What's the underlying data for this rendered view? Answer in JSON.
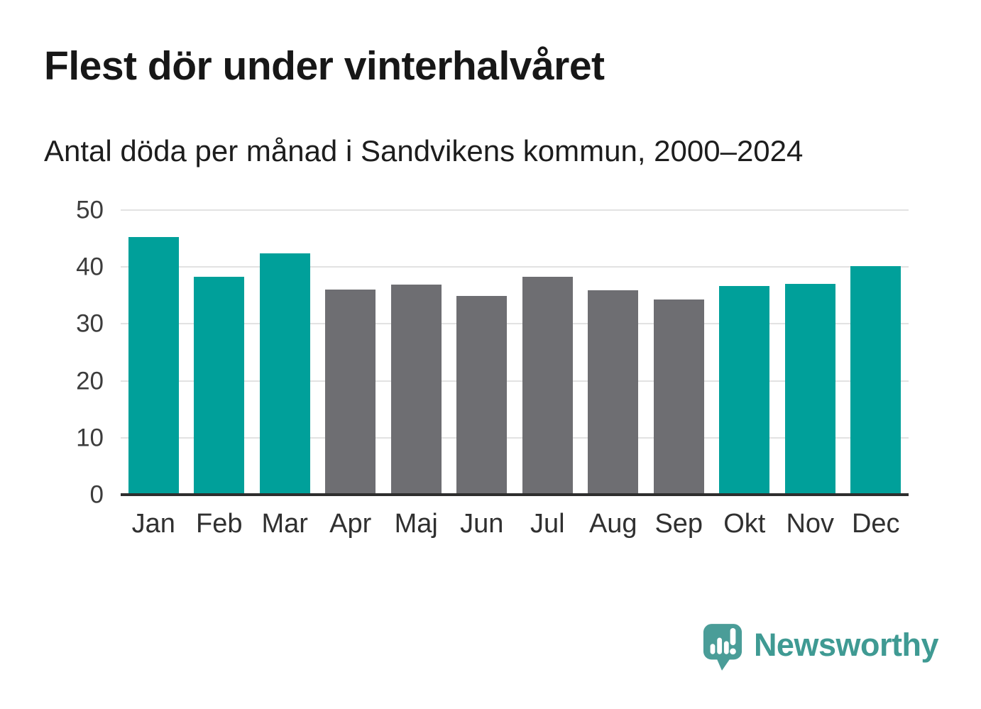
{
  "header": {
    "title": "Flest dör under vinterhalvåret",
    "subtitle": "Antal döda per månad i Sandvikens kommun, 2000–2024"
  },
  "branding": {
    "logo_text": "Newsworthy",
    "logo_icon": "newsworthy-speech-bubble-bar-chart-icon"
  },
  "colors": {
    "winter_bar": "#00a09a",
    "summer_bar": "#6e6e72",
    "gridline": "#e2e2e2",
    "axis_line": "#2e2e2e",
    "brand_text": "#3f9a93",
    "brand_bubble": "#4a9d98"
  },
  "chart_data": {
    "type": "bar",
    "title": "Flest dör under vinterhalvåret",
    "subtitle": "Antal döda per månad i Sandvikens kommun, 2000–2024",
    "categories": [
      "Jan",
      "Feb",
      "Mar",
      "Apr",
      "Maj",
      "Jun",
      "Jul",
      "Aug",
      "Sep",
      "Okt",
      "Nov",
      "Dec"
    ],
    "values": [
      45.3,
      38.3,
      42.4,
      36.0,
      36.9,
      34.9,
      38.3,
      35.9,
      34.3,
      36.6,
      37.0,
      40.1
    ],
    "bar_colors": [
      "#00a09a",
      "#00a09a",
      "#00a09a",
      "#6e6e72",
      "#6e6e72",
      "#6e6e72",
      "#6e6e72",
      "#6e6e72",
      "#6e6e72",
      "#00a09a",
      "#00a09a",
      "#00a09a"
    ],
    "xlabel": "",
    "ylabel": "",
    "ylim": [
      0,
      50
    ],
    "yticks": [
      0,
      10,
      20,
      30,
      40,
      50
    ],
    "grid": true,
    "legend": false
  }
}
